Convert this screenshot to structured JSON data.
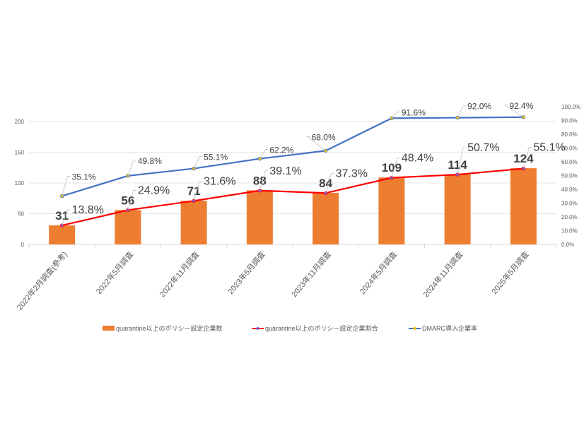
{
  "chart_data": {
    "type": "bar+line",
    "categories": [
      "2022年2月調査(参考)",
      "2022年5月調査",
      "2022年11月調査",
      "2023年5月調査",
      "2023年11月調査",
      "2024年5月調査",
      "2024年11月調査",
      "2025年5月調査"
    ],
    "series": [
      {
        "name": "quarantine以上のポリシー設定企業数",
        "type": "bar",
        "axis": "left",
        "color": "#ED7D31",
        "values": [
          31,
          56,
          71,
          88,
          84,
          109,
          114,
          124
        ],
        "labels": [
          "31",
          "56",
          "71",
          "88",
          "84",
          "109",
          "114",
          "124"
        ]
      },
      {
        "name": "quarantine以上のポリシー設定企業割合",
        "type": "line",
        "axis": "right",
        "color": "#FF0000",
        "values": [
          13.8,
          24.9,
          31.6,
          39.1,
          37.3,
          48.4,
          50.7,
          55.1
        ],
        "labels": [
          "13.8%",
          "24.9%",
          "31.6%",
          "39.1%",
          "37.3%",
          "48.4%",
          "50.7%",
          "55.1%"
        ]
      },
      {
        "name": "DMARC導入企業率",
        "type": "line",
        "axis": "right",
        "color": "#4472C4",
        "values": [
          35.1,
          49.8,
          55.1,
          62.2,
          68.0,
          91.6,
          92.0,
          92.4
        ],
        "labels": [
          "35.1%",
          "49.8%",
          "55.1%",
          "62.2%",
          "68.0%",
          "91.6%",
          "92.0%",
          "92.4%"
        ]
      }
    ],
    "left_axis": {
      "ylim": [
        0,
        200
      ],
      "ticks": [
        "0",
        "50",
        "100",
        "150",
        "200"
      ]
    },
    "right_axis": {
      "ylim": [
        0,
        100
      ],
      "ticks": [
        "0.0%",
        "10.0%",
        "20.0%",
        "30.0%",
        "40.0%",
        "50.0%",
        "60.0%",
        "70.0%",
        "80.0%",
        "90.0%",
        "100.0%"
      ]
    },
    "grid": true,
    "legend": "bottom"
  }
}
